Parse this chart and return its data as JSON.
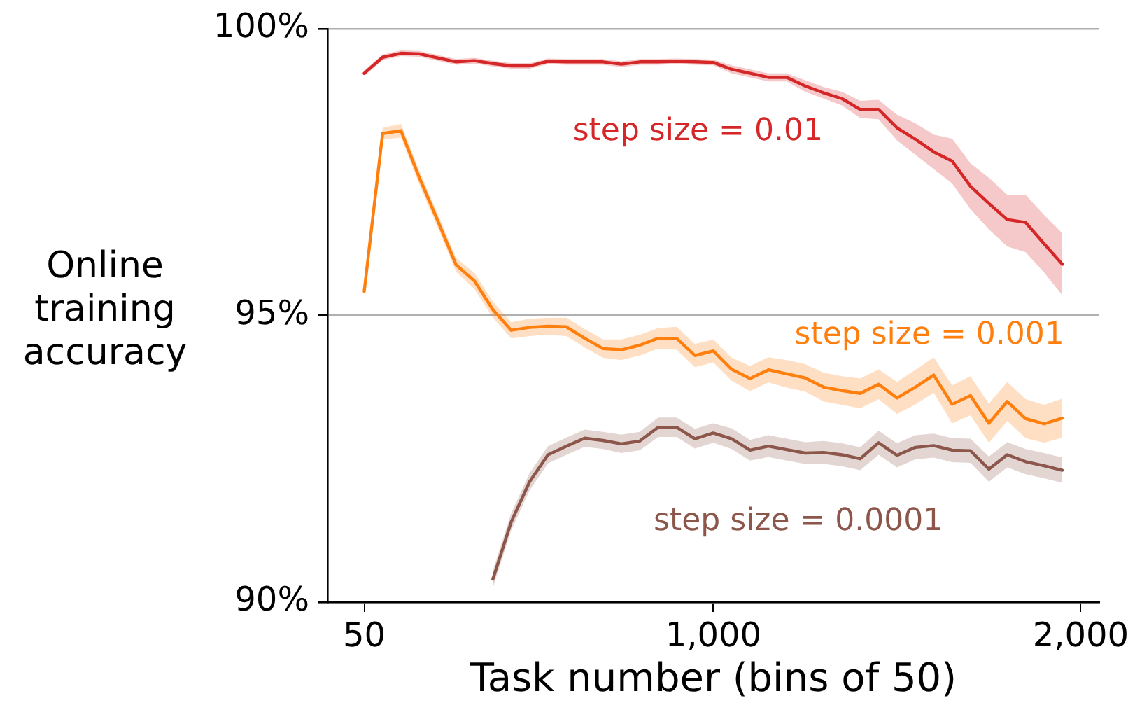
{
  "chart_data": {
    "type": "line",
    "xlabel": "Task number (bins of 50)",
    "ylabel": "Online training accuracy",
    "x": [
      50,
      100,
      150,
      200,
      250,
      300,
      350,
      400,
      450,
      500,
      550,
      600,
      650,
      700,
      750,
      800,
      850,
      900,
      950,
      1000,
      1050,
      1100,
      1150,
      1200,
      1250,
      1300,
      1350,
      1400,
      1450,
      1500,
      1550,
      1600,
      1650,
      1700,
      1750,
      1800,
      1850,
      1900,
      1950
    ],
    "xlim": [
      -50,
      2050
    ],
    "xticks": [
      50,
      {
        "value": 1000,
        "label": "1,000"
      },
      {
        "value": 2000,
        "label": "2,000"
      }
    ],
    "ylim": [
      90,
      100
    ],
    "yticks": [
      {
        "value": 90,
        "label": "90%"
      },
      {
        "value": 95,
        "label": "95%"
      },
      {
        "value": 100,
        "label": "100%"
      }
    ],
    "grid": "y",
    "legend": false,
    "series": [
      {
        "name": "step size = 0.01",
        "color": "#d62728",
        "values": [
          99.22,
          99.5,
          99.57,
          99.56,
          99.49,
          99.42,
          99.44,
          99.39,
          99.35,
          99.35,
          99.43,
          99.42,
          99.42,
          99.42,
          99.38,
          99.42,
          99.42,
          99.43,
          99.42,
          99.41,
          99.29,
          99.22,
          99.15,
          99.15,
          99.0,
          98.88,
          98.78,
          98.59,
          98.59,
          98.27,
          98.07,
          97.85,
          97.69,
          97.25,
          96.95,
          96.67,
          96.62,
          96.25,
          95.89
        ],
        "lower": [
          99.17,
          99.45,
          99.52,
          99.51,
          99.44,
          99.37,
          99.39,
          99.34,
          99.3,
          99.3,
          99.38,
          99.37,
          99.37,
          99.37,
          99.33,
          99.37,
          99.37,
          99.38,
          99.37,
          99.36,
          99.22,
          99.15,
          99.08,
          99.08,
          98.9,
          98.78,
          98.66,
          98.44,
          98.42,
          98.05,
          97.8,
          97.55,
          97.3,
          96.85,
          96.5,
          96.2,
          96.1,
          95.75,
          95.35
        ],
        "upper": [
          99.27,
          99.55,
          99.62,
          99.61,
          99.54,
          99.47,
          99.49,
          99.44,
          99.4,
          99.4,
          99.48,
          99.47,
          99.47,
          99.47,
          99.43,
          99.47,
          99.47,
          99.48,
          99.47,
          99.46,
          99.36,
          99.29,
          99.22,
          99.22,
          99.1,
          98.98,
          98.9,
          98.74,
          98.76,
          98.5,
          98.35,
          98.15,
          98.08,
          97.65,
          97.4,
          97.1,
          97.1,
          96.75,
          96.43
        ]
      },
      {
        "name": "step size = 0.001",
        "color": "#ff7f0e",
        "values": [
          95.42,
          98.17,
          98.22,
          97.4,
          96.65,
          95.88,
          95.6,
          95.1,
          94.74,
          94.79,
          94.81,
          94.8,
          94.6,
          94.42,
          94.4,
          94.48,
          94.6,
          94.6,
          94.3,
          94.38,
          94.06,
          93.9,
          94.05,
          93.98,
          93.91,
          93.75,
          93.69,
          93.64,
          93.8,
          93.56,
          93.75,
          93.96,
          93.45,
          93.6,
          93.12,
          93.5,
          93.2,
          93.11,
          93.21
        ],
        "lower": [
          95.32,
          98.07,
          98.1,
          97.28,
          96.53,
          95.76,
          95.46,
          94.96,
          94.6,
          94.64,
          94.66,
          94.64,
          94.44,
          94.26,
          94.22,
          94.3,
          94.42,
          94.4,
          94.1,
          94.18,
          93.86,
          93.68,
          93.83,
          93.74,
          93.67,
          93.5,
          93.44,
          93.38,
          93.54,
          93.28,
          93.45,
          93.65,
          93.12,
          93.26,
          92.78,
          93.16,
          92.86,
          92.78,
          92.87
        ],
        "upper": [
          95.52,
          98.27,
          98.34,
          97.52,
          96.77,
          96.0,
          95.74,
          95.24,
          94.88,
          94.94,
          94.96,
          94.96,
          94.76,
          94.58,
          94.58,
          94.66,
          94.78,
          94.8,
          94.5,
          94.58,
          94.26,
          94.12,
          94.27,
          94.22,
          94.15,
          94.0,
          93.94,
          93.9,
          94.06,
          93.84,
          94.05,
          94.27,
          93.78,
          93.94,
          93.46,
          93.84,
          93.54,
          93.44,
          93.55
        ]
      },
      {
        "name": "step size = 0.0001",
        "color": "#8c564b",
        "values": [
          null,
          null,
          null,
          null,
          null,
          null,
          null,
          90.4,
          91.4,
          92.1,
          92.57,
          92.72,
          92.86,
          92.82,
          92.76,
          92.81,
          93.05,
          93.05,
          92.85,
          92.95,
          92.85,
          92.65,
          92.72,
          92.66,
          92.6,
          92.61,
          92.57,
          92.5,
          92.78,
          92.56,
          92.7,
          92.73,
          92.65,
          92.64,
          92.32,
          92.57,
          92.45,
          92.38,
          92.3
        ],
        "lower": [
          null,
          null,
          null,
          null,
          null,
          null,
          null,
          90.25,
          91.25,
          91.95,
          92.42,
          92.57,
          92.71,
          92.67,
          92.6,
          92.65,
          92.88,
          92.88,
          92.68,
          92.78,
          92.67,
          92.47,
          92.53,
          92.47,
          92.41,
          92.41,
          92.37,
          92.3,
          92.57,
          92.35,
          92.49,
          92.52,
          92.44,
          92.43,
          92.1,
          92.35,
          92.23,
          92.16,
          92.08
        ],
        "upper": [
          null,
          null,
          null,
          null,
          null,
          null,
          null,
          90.55,
          91.55,
          92.25,
          92.72,
          92.87,
          93.01,
          92.97,
          92.92,
          92.97,
          93.22,
          93.22,
          93.02,
          93.12,
          93.03,
          92.83,
          92.91,
          92.85,
          92.79,
          92.81,
          92.77,
          92.7,
          92.99,
          92.77,
          92.91,
          92.94,
          92.86,
          92.85,
          92.54,
          92.79,
          92.67,
          92.6,
          92.52
        ]
      }
    ]
  }
}
